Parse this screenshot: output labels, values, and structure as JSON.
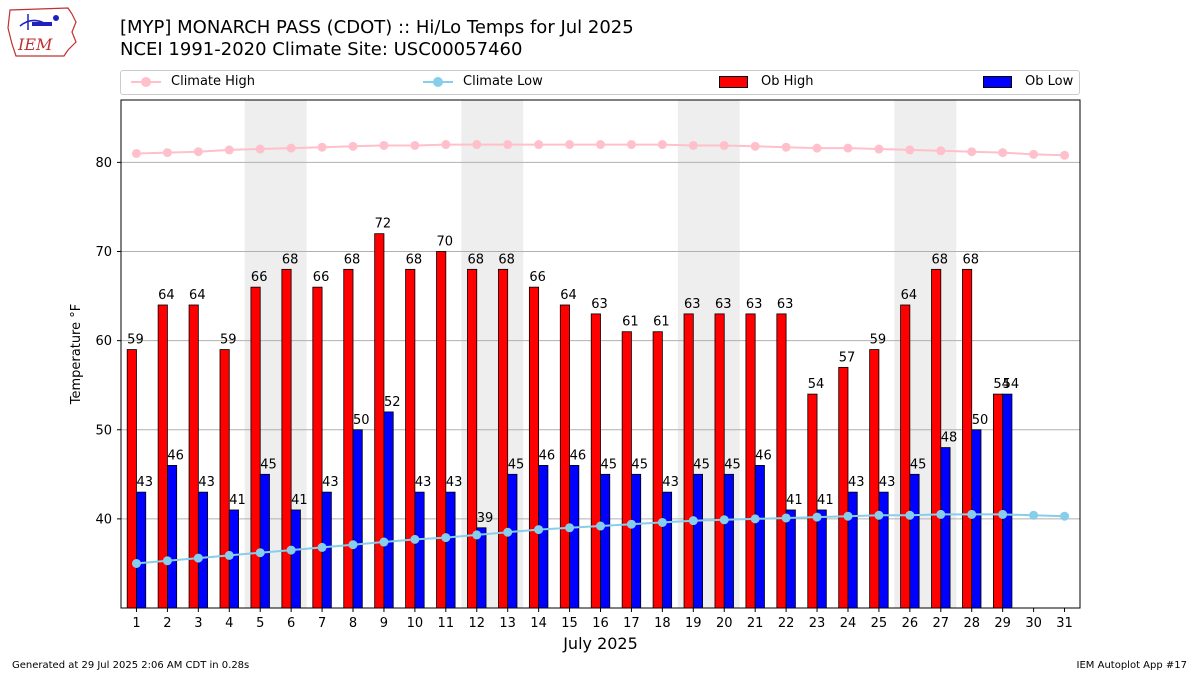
{
  "header": {
    "title_line1": "[MYP] MONARCH PASS (CDOT) :: Hi/Lo Temps for Jul 2025",
    "title_line2": "NCEI 1991-2020 Climate Site: USC00057460",
    "logo_text": "IEM"
  },
  "legend": {
    "climate_high": "Climate High",
    "climate_low": "Climate Low",
    "ob_high": "Ob High",
    "ob_low": "Ob Low"
  },
  "footer": {
    "generated": "Generated at 29 Jul 2025 2:06 AM CDT in 0.28s",
    "app": "IEM Autoplot App #17"
  },
  "colors": {
    "ob_high": "#ff0000",
    "ob_low": "#0000ff",
    "climate_high": "#ffc0cb",
    "climate_low": "#87ceeb",
    "weekend_band": "#eeeeee",
    "grid": "#b0b0b0"
  },
  "chart_data": {
    "type": "bar",
    "xlabel": "July 2025",
    "ylabel": "Temperature °F",
    "ylim": [
      30,
      87
    ],
    "yticks": [
      40,
      50,
      60,
      70,
      80
    ],
    "grid": "horizontal",
    "legend_position": "top",
    "x": [
      1,
      2,
      3,
      4,
      5,
      6,
      7,
      8,
      9,
      10,
      11,
      12,
      13,
      14,
      15,
      16,
      17,
      18,
      19,
      20,
      21,
      22,
      23,
      24,
      25,
      26,
      27,
      28,
      29,
      30,
      31
    ],
    "weekend_bands": [
      [
        5,
        6
      ],
      [
        12,
        13
      ],
      [
        19,
        20
      ],
      [
        26,
        27
      ]
    ],
    "series": [
      {
        "name": "Ob High",
        "kind": "bar",
        "values": [
          59,
          64,
          64,
          59,
          66,
          68,
          66,
          68,
          72,
          68,
          70,
          68,
          68,
          66,
          64,
          63,
          61,
          61,
          63,
          63,
          63,
          63,
          54,
          57,
          59,
          64,
          68,
          68,
          54,
          null,
          null
        ]
      },
      {
        "name": "Ob Low",
        "kind": "bar",
        "values": [
          43,
          46,
          43,
          41,
          45,
          41,
          43,
          50,
          52,
          43,
          43,
          39,
          45,
          46,
          46,
          45,
          45,
          43,
          45,
          45,
          46,
          41,
          41,
          43,
          43,
          45,
          48,
          50,
          54,
          null,
          null
        ]
      },
      {
        "name": "Climate High",
        "kind": "line",
        "values": [
          81.0,
          81.1,
          81.2,
          81.4,
          81.5,
          81.6,
          81.7,
          81.8,
          81.9,
          81.9,
          82.0,
          82.0,
          82.0,
          82.0,
          82.0,
          82.0,
          82.0,
          82.0,
          81.9,
          81.9,
          81.8,
          81.7,
          81.6,
          81.6,
          81.5,
          81.4,
          81.3,
          81.2,
          81.1,
          80.9,
          80.8
        ]
      },
      {
        "name": "Climate Low",
        "kind": "line",
        "values": [
          35.0,
          35.3,
          35.6,
          35.9,
          36.2,
          36.5,
          36.8,
          37.1,
          37.4,
          37.7,
          37.9,
          38.2,
          38.5,
          38.8,
          39.0,
          39.2,
          39.4,
          39.6,
          39.8,
          39.9,
          40.0,
          40.1,
          40.2,
          40.3,
          40.4,
          40.4,
          40.5,
          40.5,
          40.5,
          40.4,
          40.3
        ]
      }
    ]
  }
}
